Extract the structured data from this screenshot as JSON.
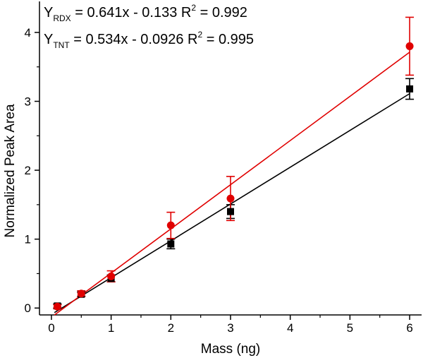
{
  "chart_data": {
    "type": "scatter",
    "xlabel": "Mass (ng)",
    "ylabel": "Normalized Peak Area",
    "xlim": [
      -0.2,
      6.2
    ],
    "ylim": [
      -0.1,
      4.45
    ],
    "x_ticks": [
      0,
      1,
      2,
      3,
      4,
      5,
      6
    ],
    "y_ticks": [
      0,
      1,
      2,
      3,
      4
    ],
    "x_tick_labels": [
      "0",
      "1",
      "2",
      "3",
      "4",
      "5",
      "6"
    ],
    "y_tick_labels": [
      "0",
      "1",
      "2",
      "3",
      "4"
    ],
    "series": [
      {
        "name": "TNT",
        "color": "#000000",
        "marker": "square",
        "x": [
          0.1,
          0.5,
          1,
          2,
          3,
          6
        ],
        "y": [
          0.03,
          0.2,
          0.43,
          0.93,
          1.4,
          3.18
        ],
        "err": [
          0.03,
          0.03,
          0.05,
          0.07,
          0.1,
          0.15
        ],
        "fit": {
          "slope": 0.534,
          "intercept": -0.0926
        }
      },
      {
        "name": "RDX",
        "color": "#e00000",
        "marker": "circle",
        "x": [
          0.1,
          0.5,
          1,
          2,
          3,
          6
        ],
        "y": [
          0.02,
          0.21,
          0.46,
          1.2,
          1.59,
          3.8
        ],
        "err": [
          0.03,
          0.04,
          0.08,
          0.19,
          0.32,
          0.42
        ],
        "fit": {
          "slope": 0.641,
          "intercept": -0.133
        }
      }
    ],
    "annotations": [
      {
        "id": "rdx",
        "y": "Y",
        "sub": "RDX",
        "mid": " = 0.641x - 0.133 R",
        "sup": "2",
        "tail": " = 0.992"
      },
      {
        "id": "tnt",
        "y": "Y",
        "sub": "TNT",
        "mid": " = 0.534x - 0.0926 R",
        "sup": "2",
        "tail": " = 0.995"
      }
    ]
  }
}
